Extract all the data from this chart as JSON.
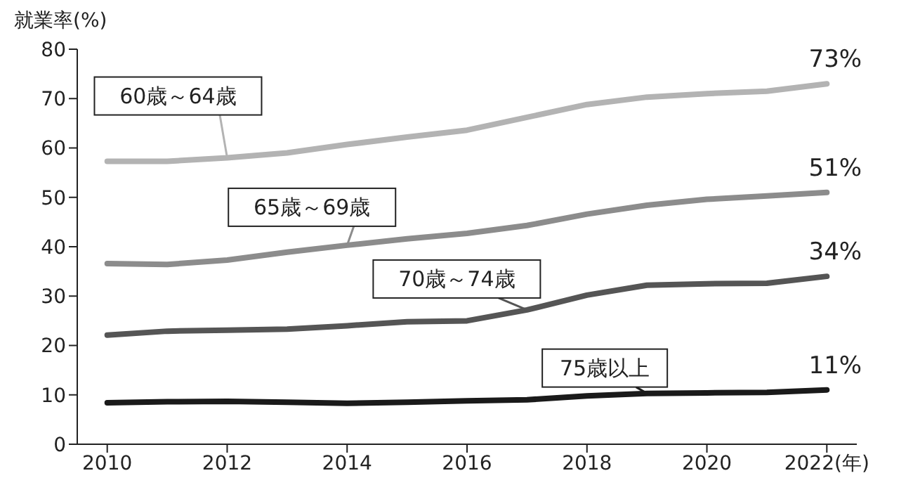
{
  "chart_data": {
    "type": "line",
    "ylabel": "就業率(%)",
    "x": [
      2010,
      2011,
      2012,
      2013,
      2014,
      2015,
      2016,
      2017,
      2018,
      2019,
      2020,
      2021,
      2022
    ],
    "series": [
      {
        "name": "60歳～64歳",
        "color": "#b3b3b3",
        "values": [
          57.3,
          57.3,
          58,
          59,
          60.7,
          62.2,
          63.6,
          66.2,
          68.8,
          70.3,
          71,
          71.5,
          73
        ],
        "value_labels": [
          null,
          null,
          null,
          null,
          null,
          null,
          null,
          null,
          null,
          null,
          null,
          null,
          "73%"
        ]
      },
      {
        "name": "65歳～69歳",
        "color": "#8c8c8c",
        "values": [
          36.6,
          36.4,
          37.3,
          38.9,
          40.3,
          41.6,
          42.7,
          44.3,
          46.6,
          48.4,
          49.6,
          50.3,
          51
        ],
        "value_labels": [
          null,
          null,
          null,
          null,
          null,
          null,
          null,
          null,
          null,
          null,
          null,
          null,
          "51%"
        ]
      },
      {
        "name": "70歳～74歳",
        "color": "#555555",
        "values": [
          22.1,
          22.9,
          23.1,
          23.3,
          24,
          24.8,
          25,
          27.2,
          30.2,
          32.2,
          32.5,
          32.6,
          34
        ],
        "value_labels": [
          null,
          null,
          null,
          null,
          null,
          null,
          null,
          null,
          null,
          null,
          null,
          null,
          "34%"
        ]
      },
      {
        "name": "75歳以上",
        "color": "#1a1a1a",
        "values": [
          8.4,
          8.6,
          8.7,
          8.5,
          8.3,
          8.5,
          8.8,
          9,
          9.8,
          10.3,
          10.4,
          10.5,
          11
        ],
        "value_labels": [
          null,
          null,
          null,
          null,
          null,
          null,
          null,
          null,
          null,
          null,
          null,
          null,
          "11%"
        ]
      }
    ],
    "xlim": [
      2009.5,
      2022.5
    ],
    "xticks": [
      2010,
      2012,
      2014,
      2016,
      2018,
      2020,
      {
        "value": 2022,
        "label": "2022(年)"
      }
    ],
    "ylim": [
      0,
      80
    ],
    "yticks": [
      0,
      10,
      20,
      30,
      40,
      50,
      60,
      70,
      80
    ],
    "grid": false,
    "legend": false,
    "marker": "none",
    "line_style": "solid"
  }
}
